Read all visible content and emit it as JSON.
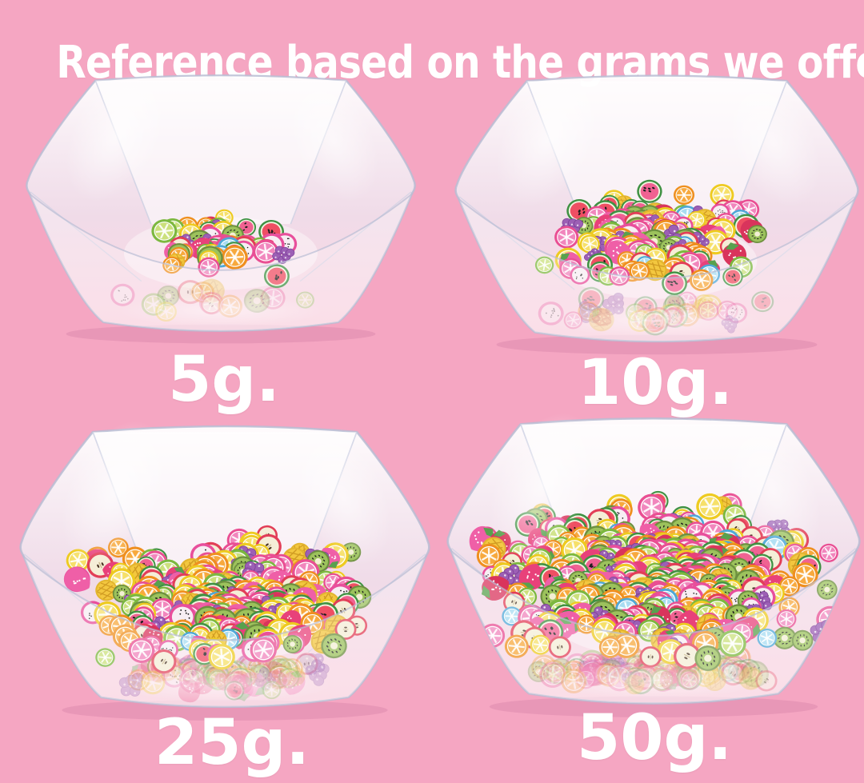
{
  "title": "Reference based on the grams we offer",
  "bowls": [
    {
      "id": "bowl-5g",
      "label": "5g.",
      "grams": 5
    },
    {
      "id": "bowl-10g",
      "label": "10g.",
      "grams": 10
    },
    {
      "id": "bowl-25g",
      "label": "25g.",
      "grams": 25
    },
    {
      "id": "bowl-50g",
      "label": "50g.",
      "grams": 50
    }
  ],
  "sprinkle_types": [
    "orange-slice",
    "lemon-slice",
    "lime-slice",
    "pink-grapefruit-slice",
    "blue-lemon-slice",
    "watermelon-slice",
    "kiwi-slice",
    "strawberry-slice",
    "grape-cluster",
    "apple-slice",
    "dragonfruit-slice",
    "pineapple-slice"
  ],
  "colors": {
    "background": "#f5a6c2",
    "title_text": "#ffffff",
    "label_text": "#ffffff",
    "bowl_plastic_edge": "#b9bdd4",
    "bowl_shadow": "#d986ab",
    "fruit": {
      "orange": "#ef8f1f",
      "orange_flesh": "#f7a93e",
      "lemon": "#eecb21",
      "lemon_flesh": "#f6e06a",
      "lime": "#7cb83f",
      "lime_flesh": "#cbe07c",
      "grapefruit": "#e94f93",
      "grapefruit_flesh": "#f186bd",
      "blue_lemon": "#4fa8d8",
      "blue_lemon_flesh": "#a8dcf2",
      "watermelon": "#ef4f63",
      "watermelon_rind": "#3f9143",
      "kiwi": "#9cc25c",
      "kiwi_skin": "#6d8f3f",
      "strawberry": "#e8417a",
      "leaf": "#58a14e",
      "grape": "#9c5fb5",
      "apple_skin": "#e23e57",
      "apple_flesh": "#f5eed7",
      "dragonfruit_rim": "#e84f9c",
      "pineapple": "#f3c73f"
    }
  }
}
